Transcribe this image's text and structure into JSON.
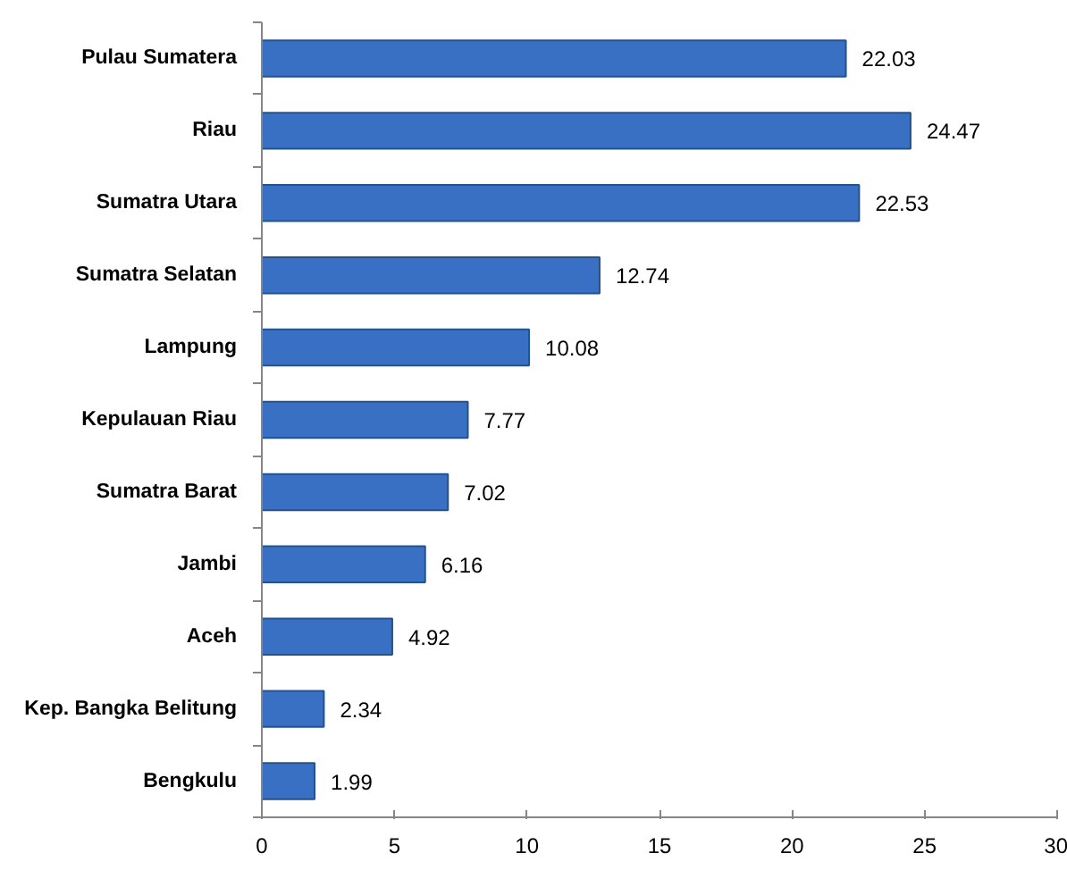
{
  "chart_data": {
    "type": "bar",
    "orientation": "horizontal",
    "categories": [
      "Pulau Sumatera",
      "Riau",
      "Sumatra Utara",
      "Sumatra Selatan",
      "Lampung",
      "Kepulauan Riau",
      "Sumatra Barat",
      "Jambi",
      "Aceh",
      "Kep. Bangka Belitung",
      "Bengkulu"
    ],
    "values": [
      22.03,
      24.47,
      22.53,
      12.74,
      10.08,
      7.77,
      7.02,
      6.16,
      4.92,
      2.34,
      1.99
    ],
    "color": "#3a70c3",
    "xlim": [
      0,
      30
    ],
    "xticks": [
      0,
      5,
      10,
      15,
      20,
      25,
      30
    ],
    "data_labels": true
  }
}
